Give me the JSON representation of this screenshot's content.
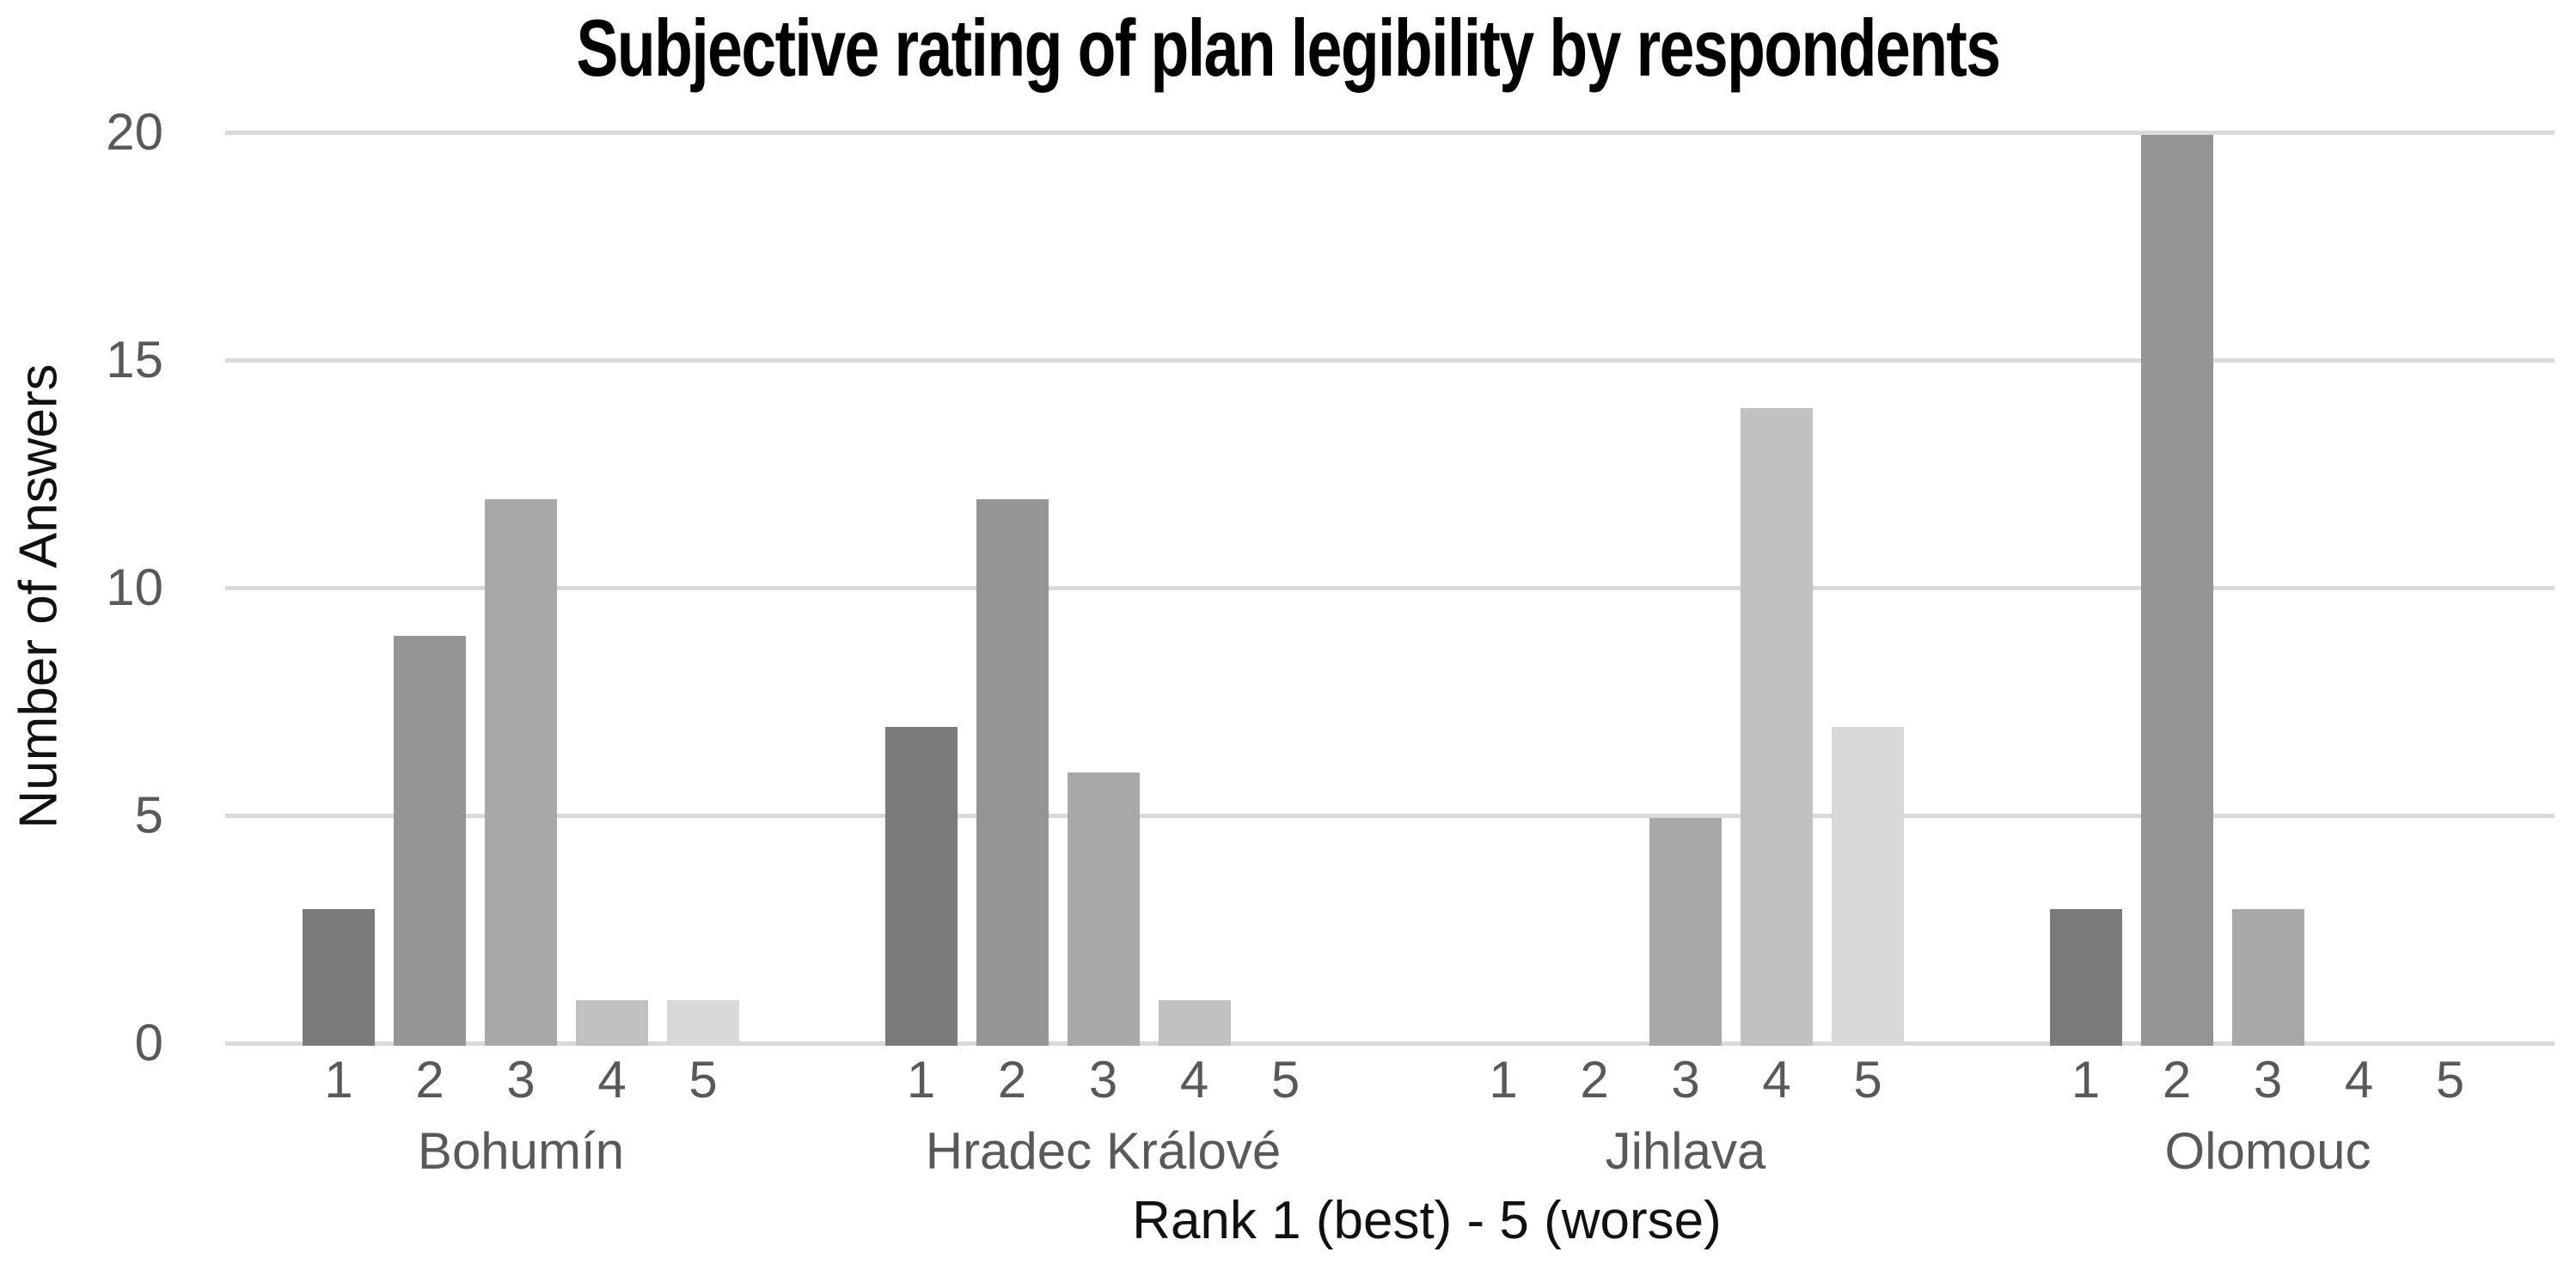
{
  "chart_data": {
    "type": "bar",
    "title": "Subjective rating of plan legibility by respondents",
    "xlabel": "Rank 1 (best) - 5 (worse)",
    "ylabel": "Number of Answers",
    "ylim": [
      0,
      20
    ],
    "yticks": [
      0,
      5,
      10,
      15,
      20
    ],
    "grid": true,
    "legend_position": "none",
    "rank_labels": [
      "1",
      "2",
      "3",
      "4",
      "5"
    ],
    "categories": [
      "Bohumín",
      "Hradec Králové",
      "Jihlava",
      "Olomouc"
    ],
    "groups": [
      {
        "city": "Bohumín",
        "values": [
          3,
          9,
          12,
          1,
          1
        ]
      },
      {
        "city": "Hradec Králové",
        "values": [
          7,
          12,
          6,
          1,
          0
        ]
      },
      {
        "city": "Jihlava",
        "values": [
          0,
          0,
          5,
          14,
          7
        ]
      },
      {
        "city": "Olomouc",
        "values": [
          3,
          20,
          3,
          0,
          0
        ]
      }
    ],
    "series": [
      {
        "name": "Rank 1",
        "color": "#7b7b7b",
        "values": [
          3,
          7,
          0,
          3
        ]
      },
      {
        "name": "Rank 2",
        "color": "#959595",
        "values": [
          9,
          12,
          0,
          20
        ]
      },
      {
        "name": "Rank 3",
        "color": "#a8a8a6",
        "values": [
          12,
          6,
          5,
          3
        ]
      },
      {
        "name": "Rank 4",
        "color": "#c1c1bf",
        "values": [
          1,
          1,
          14,
          0
        ]
      },
      {
        "name": "Rank 5",
        "color": "#d8d8d6",
        "values": [
          1,
          0,
          7,
          0
        ]
      }
    ],
    "colors": {
      "bar_by_rank": [
        "#7b7b7b",
        "#959595",
        "#a8a8a6",
        "#c1c1bf",
        "#d8d8d6"
      ],
      "gridline": "#d9d9d9",
      "axis_line": "#d6d6d6",
      "tick_text": "#595959",
      "title_text": "#000000",
      "axis_title_text": "#111111"
    }
  }
}
